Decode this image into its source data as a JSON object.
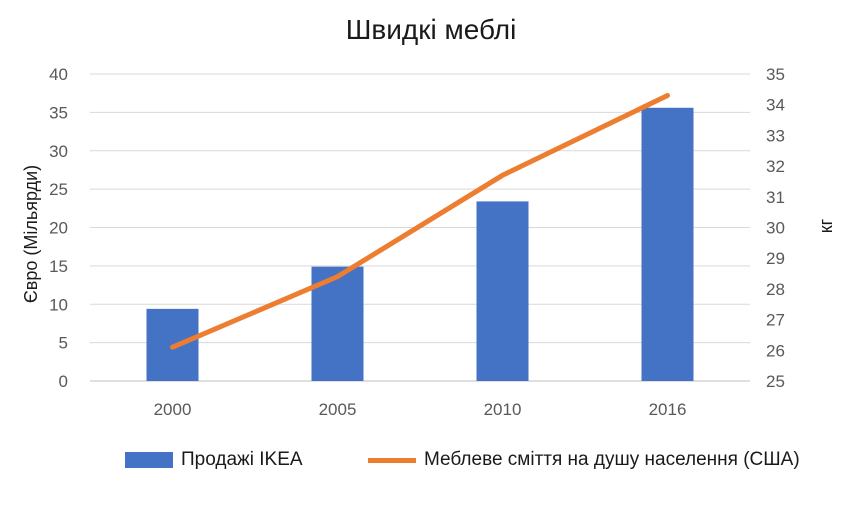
{
  "chart_data": {
    "type": "bar",
    "title": "Швидкі меблі",
    "categories": [
      "2000",
      "2005",
      "2010",
      "2016"
    ],
    "series": [
      {
        "name": "Продажі IKEA",
        "type": "bar",
        "axis": "left",
        "color": "#4472C4",
        "values": [
          9.4,
          14.9,
          23.4,
          35.6
        ]
      },
      {
        "name": "Меблеве сміття на душу населення (США)",
        "type": "line",
        "axis": "right",
        "color": "#ED7D31",
        "values": [
          26.1,
          28.4,
          31.7,
          34.3
        ]
      }
    ],
    "ylabel": "Євро (Мільярди)",
    "ylabel_right": "кг",
    "ylim": [
      0,
      40
    ],
    "yticks": [
      0,
      5,
      10,
      15,
      20,
      25,
      30,
      35,
      40
    ],
    "ylim_right": [
      25,
      35
    ],
    "yticks_right": [
      25,
      26,
      27,
      28,
      29,
      30,
      31,
      32,
      33,
      34,
      35
    ],
    "grid": true,
    "legend_position": "bottom"
  }
}
